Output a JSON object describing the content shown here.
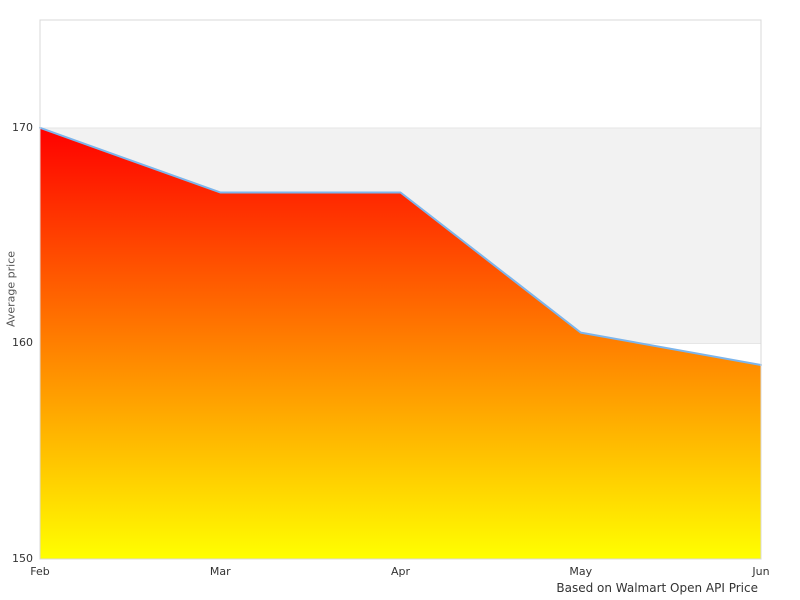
{
  "chart_data": {
    "type": "area",
    "title": "",
    "categories": [
      "Feb",
      "Mar",
      "Apr",
      "May",
      "Jun"
    ],
    "values": [
      170,
      167,
      167,
      160.5,
      159
    ],
    "series_name": "Average price",
    "xlabel": "",
    "ylabel": "Average price",
    "ylim": [
      150,
      175
    ],
    "yticks": [
      150,
      160,
      170
    ],
    "bands": [
      {
        "from": 160,
        "to": 170,
        "color": "#f2f2f2"
      }
    ],
    "legend": "none",
    "grid": "horizontal",
    "caption": "Based on Walmart Open API Price",
    "colors": {
      "line": "#7cb5ec",
      "area_gradient_top": "#ff0000",
      "area_gradient_bottom": "#ffff00",
      "gridline": "#e6e6e6",
      "plot_border": "#d8d8d8",
      "band": "#f2f2f2",
      "tick_label": "#333333",
      "axis_title": "#555555",
      "caption_text": "#333333",
      "background": "#ffffff"
    }
  }
}
